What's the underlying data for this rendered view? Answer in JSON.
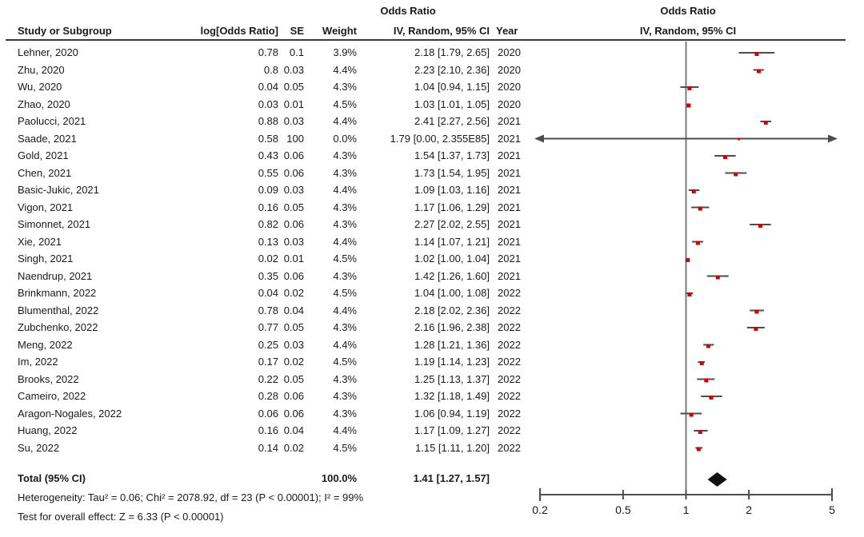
{
  "chart_data": {
    "type": "forest",
    "headers": {
      "study": "Study or Subgroup",
      "log_or": "log[Odds Ratio]",
      "se": "SE",
      "weight": "Weight",
      "or_title": "Odds Ratio",
      "ci": "IV, Random, 95% CI",
      "year": "Year"
    },
    "studies": [
      {
        "name": "Lehner, 2020",
        "log_or": "0.78",
        "se": "0.1",
        "weight": "3.9%",
        "ci_text": "2.18 [1.79, 2.65]",
        "year": "2020",
        "or": 2.18,
        "lo": 1.79,
        "hi": 2.65
      },
      {
        "name": "Zhu, 2020",
        "log_or": "0.8",
        "se": "0.03",
        "weight": "4.4%",
        "ci_text": "2.23 [2.10, 2.36]",
        "year": "2020",
        "or": 2.23,
        "lo": 2.1,
        "hi": 2.36
      },
      {
        "name": "Wu, 2020",
        "log_or": "0.04",
        "se": "0.05",
        "weight": "4.3%",
        "ci_text": "1.04 [0.94, 1.15]",
        "year": "2020",
        "or": 1.04,
        "lo": 0.94,
        "hi": 1.15
      },
      {
        "name": "Zhao, 2020",
        "log_or": "0.03",
        "se": "0.01",
        "weight": "4.5%",
        "ci_text": "1.03 [1.01, 1.05]",
        "year": "2020",
        "or": 1.03,
        "lo": 1.01,
        "hi": 1.05
      },
      {
        "name": "Paolucci, 2021",
        "log_or": "0.88",
        "se": "0.03",
        "weight": "4.4%",
        "ci_text": "2.41 [2.27, 2.56]",
        "year": "2021",
        "or": 2.41,
        "lo": 2.27,
        "hi": 2.56
      },
      {
        "name": "Saade, 2021",
        "log_or": "0.58",
        "se": "100",
        "weight": "0.0%",
        "ci_text": "1.79 [0.00, 2.355E85]",
        "year": "2021",
        "or": 1.79,
        "lo": 0,
        "hi": 2.355e+85
      },
      {
        "name": "Gold, 2021",
        "log_or": "0.43",
        "se": "0.06",
        "weight": "4.3%",
        "ci_text": "1.54 [1.37, 1.73]",
        "year": "2021",
        "or": 1.54,
        "lo": 1.37,
        "hi": 1.73
      },
      {
        "name": "Chen, 2021",
        "log_or": "0.55",
        "se": "0.06",
        "weight": "4.3%",
        "ci_text": "1.73 [1.54, 1.95]",
        "year": "2021",
        "or": 1.73,
        "lo": 1.54,
        "hi": 1.95
      },
      {
        "name": "Basic-Jukic, 2021",
        "log_or": "0.09",
        "se": "0.03",
        "weight": "4.4%",
        "ci_text": "1.09 [1.03, 1.16]",
        "year": "2021",
        "or": 1.09,
        "lo": 1.03,
        "hi": 1.16
      },
      {
        "name": "Vigon, 2021",
        "log_or": "0.16",
        "se": "0.05",
        "weight": "4.3%",
        "ci_text": "1.17 [1.06, 1.29]",
        "year": "2021",
        "or": 1.17,
        "lo": 1.06,
        "hi": 1.29
      },
      {
        "name": "Simonnet, 2021",
        "log_or": "0.82",
        "se": "0.06",
        "weight": "4.3%",
        "ci_text": "2.27 [2.02, 2.55]",
        "year": "2021",
        "or": 2.27,
        "lo": 2.02,
        "hi": 2.55
      },
      {
        "name": "Xie, 2021",
        "log_or": "0.13",
        "se": "0.03",
        "weight": "4.4%",
        "ci_text": "1.14 [1.07, 1.21]",
        "year": "2021",
        "or": 1.14,
        "lo": 1.07,
        "hi": 1.21
      },
      {
        "name": "Singh, 2021",
        "log_or": "0.02",
        "se": "0.01",
        "weight": "4.5%",
        "ci_text": "1.02 [1.00, 1.04]",
        "year": "2021",
        "or": 1.02,
        "lo": 1.0,
        "hi": 1.04
      },
      {
        "name": "Naendrup, 2021",
        "log_or": "0.35",
        "se": "0.06",
        "weight": "4.3%",
        "ci_text": "1.42 [1.26, 1.60]",
        "year": "2021",
        "or": 1.42,
        "lo": 1.26,
        "hi": 1.6
      },
      {
        "name": "Brinkmann, 2022",
        "log_or": "0.04",
        "se": "0.02",
        "weight": "4.5%",
        "ci_text": "1.04 [1.00, 1.08]",
        "year": "2022",
        "or": 1.04,
        "lo": 1.0,
        "hi": 1.08
      },
      {
        "name": "Blumenthal, 2022",
        "log_or": "0.78",
        "se": "0.04",
        "weight": "4.4%",
        "ci_text": "2.18 [2.02, 2.36]",
        "year": "2022",
        "or": 2.18,
        "lo": 2.02,
        "hi": 2.36
      },
      {
        "name": "Zubchenko, 2022",
        "log_or": "0.77",
        "se": "0.05",
        "weight": "4.3%",
        "ci_text": "2.16 [1.96, 2.38]",
        "year": "2022",
        "or": 2.16,
        "lo": 1.96,
        "hi": 2.38
      },
      {
        "name": "Meng, 2022",
        "log_or": "0.25",
        "se": "0.03",
        "weight": "4.4%",
        "ci_text": "1.28 [1.21, 1.36]",
        "year": "2022",
        "or": 1.28,
        "lo": 1.21,
        "hi": 1.36
      },
      {
        "name": "Im, 2022",
        "log_or": "0.17",
        "se": "0.02",
        "weight": "4.5%",
        "ci_text": "1.19 [1.14, 1.23]",
        "year": "2022",
        "or": 1.19,
        "lo": 1.14,
        "hi": 1.23
      },
      {
        "name": "Brooks, 2022",
        "log_or": "0.22",
        "se": "0.05",
        "weight": "4.3%",
        "ci_text": "1.25 [1.13, 1.37]",
        "year": "2022",
        "or": 1.25,
        "lo": 1.13,
        "hi": 1.37
      },
      {
        "name": "Cameiro, 2022",
        "log_or": "0.28",
        "se": "0.06",
        "weight": "4.3%",
        "ci_text": "1.32 [1.18, 1.49]",
        "year": "2022",
        "or": 1.32,
        "lo": 1.18,
        "hi": 1.49
      },
      {
        "name": "Aragon-Nogales, 2022",
        "log_or": "0.06",
        "se": "0.06",
        "weight": "4.3%",
        "ci_text": "1.06 [0.94, 1.19]",
        "year": "2022",
        "or": 1.06,
        "lo": 0.94,
        "hi": 1.19
      },
      {
        "name": "Huang, 2022",
        "log_or": "0.16",
        "se": "0.04",
        "weight": "4.4%",
        "ci_text": "1.17 [1.09, 1.27]",
        "year": "2022",
        "or": 1.17,
        "lo": 1.09,
        "hi": 1.27
      },
      {
        "name": "Su, 2022",
        "log_or": "0.14",
        "se": "0.02",
        "weight": "4.5%",
        "ci_text": "1.15 [1.11, 1.20]",
        "year": "2022",
        "or": 1.15,
        "lo": 1.11,
        "hi": 1.2
      }
    ],
    "total": {
      "label": "Total (95% CI)",
      "weight": "100.0%",
      "ci_text": "1.41 [1.27, 1.57]",
      "or": 1.41,
      "lo": 1.27,
      "hi": 1.57
    },
    "heterogeneity": "Heterogeneity: Tau² = 0.06; Chi² = 2078.92, df = 23 (P < 0.00001); I² = 99%",
    "overall_effect": "Test for overall effect: Z = 6.33 (P < 0.00001)",
    "axis": {
      "scale": "log",
      "min": 0.2,
      "max": 5,
      "ticks": [
        "0.2",
        "0.5",
        "1",
        "2",
        "5"
      ]
    },
    "colors": {
      "marker": "#cc0000",
      "ci_line": "#4d4d4d",
      "axis_line": "#7a7a7a",
      "diamond": "#111111",
      "text": "#1a1a1a"
    }
  }
}
